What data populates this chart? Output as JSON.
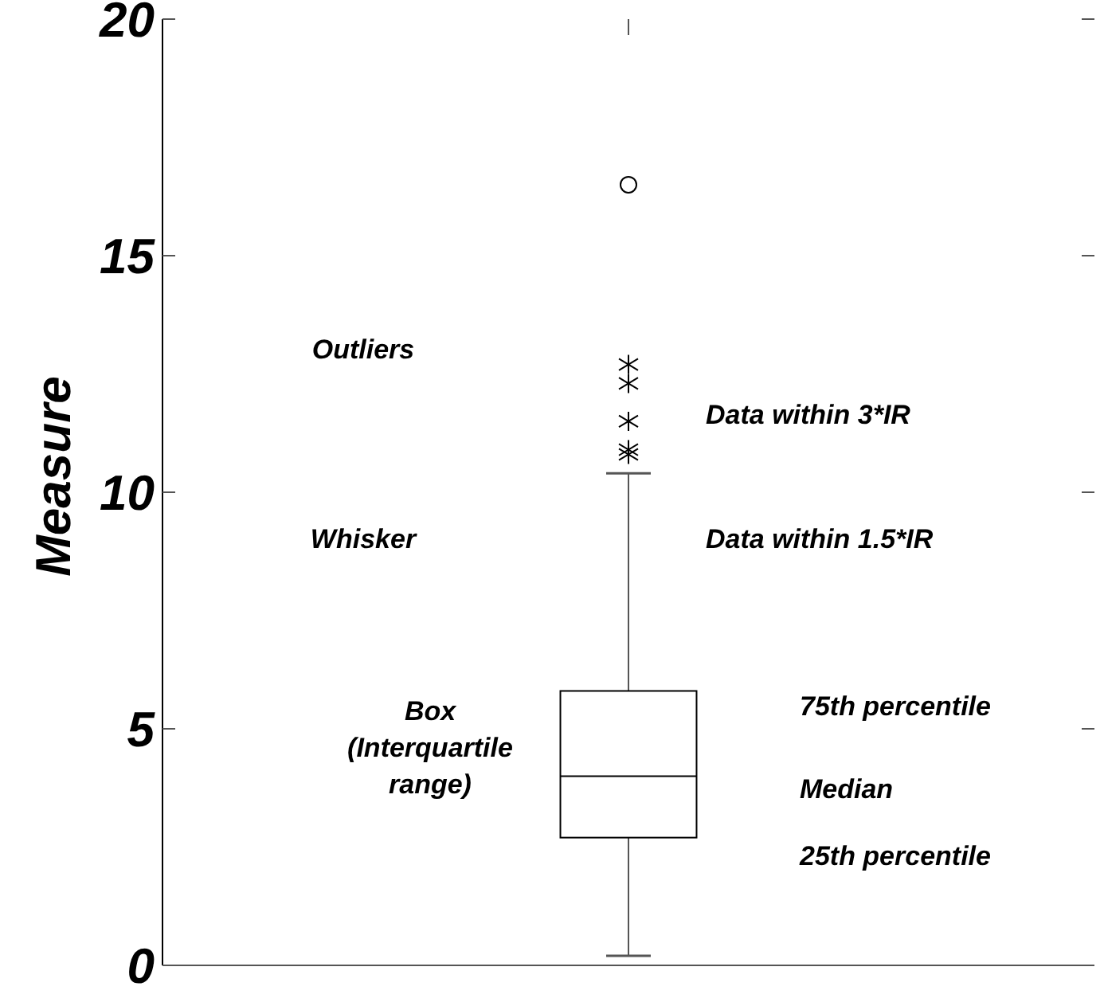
{
  "chart_data": {
    "type": "box",
    "ylabel": "Measure",
    "categories": [
      null
    ],
    "boxes": [
      {
        "low": 0.2,
        "q1": 2.7,
        "median": 4.0,
        "q3": 5.8,
        "high": 10.4,
        "outliers": [
          12.7,
          12.3,
          11.5,
          10.9,
          10.8
        ]
      }
    ],
    "series": [
      {
        "type": "scatter",
        "marker": "circle",
        "values": [
          16.5
        ]
      }
    ],
    "ylim": [
      0,
      20
    ],
    "yticks": [
      0,
      5,
      10,
      15,
      20
    ],
    "grid": false,
    "annotations": [
      "Outliers",
      "Data within 3*IR",
      "Whisker",
      "Data within 1.5*IR",
      "75th percentile",
      "Box (Interquartile range)",
      "Median",
      "25th percentile"
    ]
  }
}
